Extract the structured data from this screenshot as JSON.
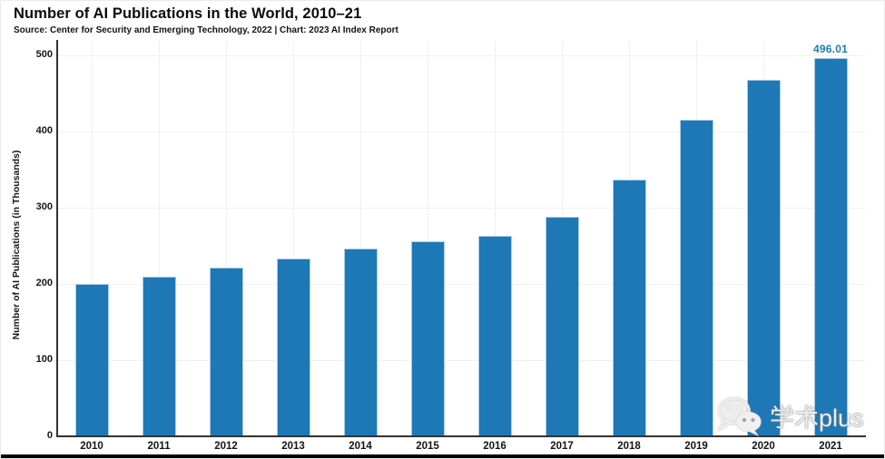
{
  "header": {
    "title": "Number of AI Publications in the World, 2010–21",
    "subtitle": "Source: Center for Security and Emerging Technology, 2022 | Chart: 2023 AI Index Report"
  },
  "chart_data": {
    "type": "bar",
    "title": "Number of AI Publications in the World, 2010–21",
    "categories": [
      "2010",
      "2011",
      "2012",
      "2013",
      "2014",
      "2015",
      "2016",
      "2017",
      "2018",
      "2019",
      "2020",
      "2021"
    ],
    "values": [
      200,
      210,
      221,
      233,
      247,
      256,
      263,
      288,
      337,
      415,
      468,
      496.01
    ],
    "annotation": {
      "category": "2021",
      "text": "496.01"
    },
    "xlabel": "",
    "ylabel": "Number of AI Publications (in Thousands)",
    "ylim": [
      0,
      500
    ],
    "yticks": [
      0,
      100,
      200,
      300,
      400,
      500
    ],
    "grid": true,
    "legend_position": "none",
    "colors": {
      "bar": "#1e78b5",
      "bar_edge": "#a9cde8",
      "annotation": "#1f7bb8",
      "axis": "#333333",
      "grid": "#f1f1f1",
      "text": "#141414"
    }
  },
  "watermark": {
    "icon": "wechat-icon",
    "text": "学术plus"
  },
  "footer": {
    "bar_color": "#000000"
  }
}
